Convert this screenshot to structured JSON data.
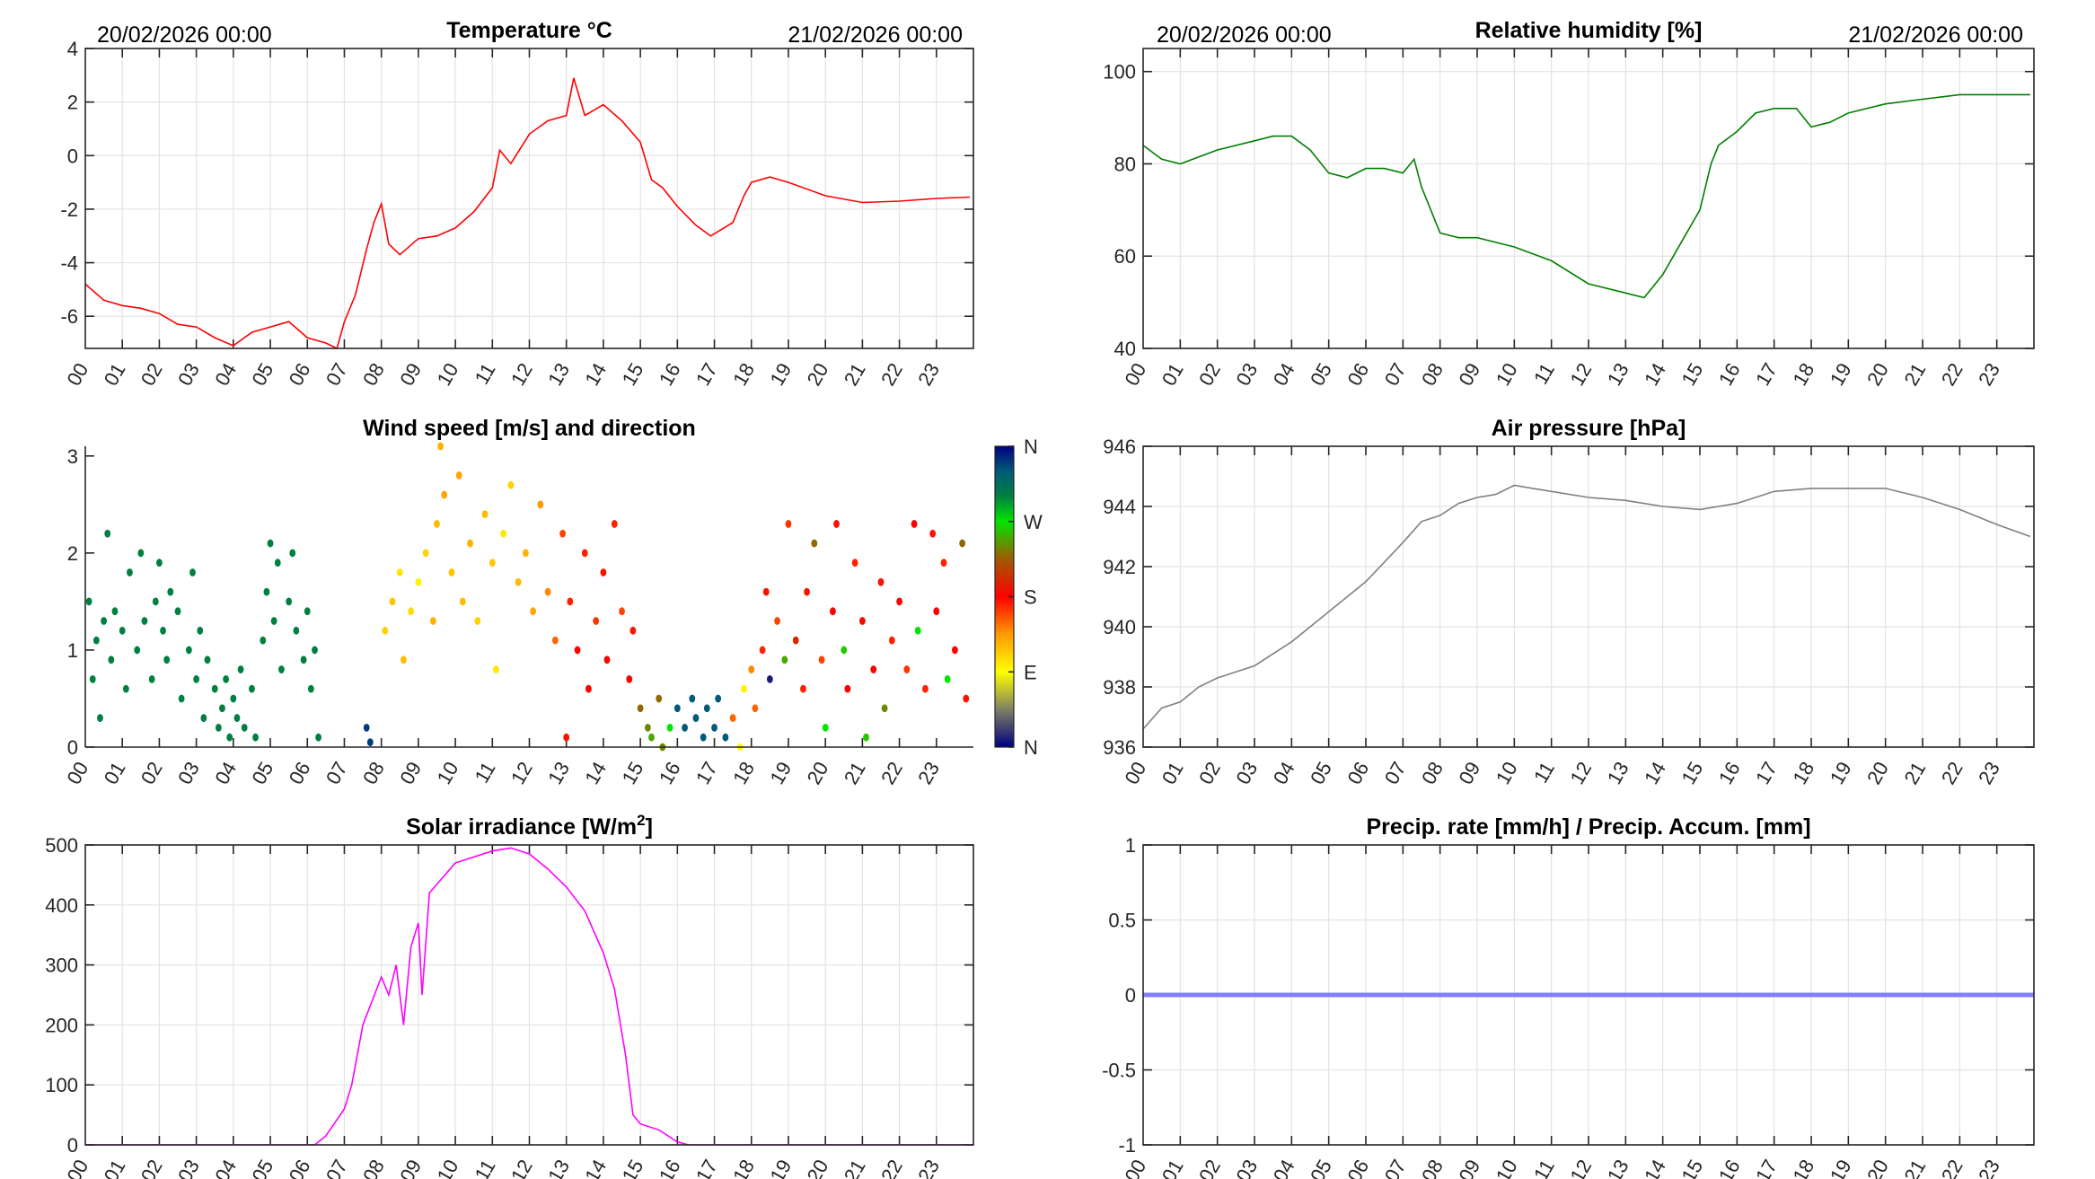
{
  "header": {
    "start_date": "20/02/2026 00:00",
    "end_date": "21/02/2026 00:00"
  },
  "x_tick_labels": [
    "00",
    "01",
    "02",
    "03",
    "04",
    "05",
    "06",
    "07",
    "08",
    "09",
    "10",
    "11",
    "12",
    "13",
    "14",
    "15",
    "16",
    "17",
    "18",
    "19",
    "20",
    "21",
    "22",
    "23"
  ],
  "chart_data": [
    {
      "id": "temperature",
      "type": "line",
      "title": "Temperature °C",
      "color": "#ff0000",
      "xlim": [
        0,
        24
      ],
      "ylim": [
        -7.2,
        4
      ],
      "yticks": [
        -6,
        -4,
        -2,
        0,
        2,
        4
      ],
      "grid": true,
      "x": [
        0,
        0.5,
        1,
        1.5,
        2,
        2.5,
        3,
        3.5,
        4,
        4.5,
        5,
        5.5,
        6,
        6.5,
        6.8,
        7,
        7.3,
        7.6,
        7.8,
        8,
        8.2,
        8.5,
        9,
        9.5,
        10,
        10.5,
        11,
        11.2,
        11.5,
        12,
        12.5,
        13,
        13.2,
        13.5,
        14,
        14.5,
        15,
        15.3,
        15.6,
        16,
        16.5,
        16.9,
        17.5,
        17.8,
        18,
        18.5,
        19,
        20,
        21,
        22,
        23,
        23.9
      ],
      "y": [
        -4.8,
        -5.4,
        -5.6,
        -5.7,
        -5.9,
        -6.3,
        -6.4,
        -6.8,
        -7.1,
        -6.6,
        -6.4,
        -6.2,
        -6.8,
        -7.0,
        -7.2,
        -6.2,
        -5.2,
        -3.5,
        -2.5,
        -1.8,
        -3.3,
        -3.7,
        -3.1,
        -3.0,
        -2.7,
        -2.1,
        -1.2,
        0.2,
        -0.3,
        0.8,
        1.3,
        1.5,
        2.9,
        1.5,
        1.9,
        1.3,
        0.5,
        -0.9,
        -1.2,
        -1.9,
        -2.6,
        -3.0,
        -2.5,
        -1.5,
        -1.0,
        -0.8,
        -1.0,
        -1.5,
        -1.75,
        -1.7,
        -1.6,
        -1.55
      ]
    },
    {
      "id": "humidity",
      "type": "line",
      "title": "Relative humidity [%]",
      "color": "#007f00",
      "xlim": [
        0,
        24
      ],
      "ylim": [
        40,
        105
      ],
      "yticks": [
        40,
        60,
        80,
        100
      ],
      "grid": true,
      "x": [
        0,
        0.5,
        1,
        2,
        3,
        3.5,
        4,
        4.5,
        5,
        5.5,
        6,
        6.5,
        7,
        7.3,
        7.5,
        8,
        8.5,
        9,
        10,
        11,
        12,
        13,
        13.5,
        14,
        14.5,
        15,
        15.3,
        15.5,
        16,
        16.5,
        17,
        17.6,
        18,
        18.5,
        19,
        20,
        21,
        22,
        23,
        23.9
      ],
      "y": [
        84,
        81,
        80,
        83,
        85,
        86,
        86,
        83,
        78,
        77,
        79,
        79,
        78,
        81,
        75,
        65,
        64,
        64,
        62,
        59,
        54,
        52,
        51,
        56,
        63,
        70,
        80,
        84,
        87,
        91,
        92,
        92,
        88,
        89,
        91,
        93,
        94,
        95,
        95,
        95
      ]
    },
    {
      "id": "wind",
      "type": "scatter",
      "title": "Wind speed [m/s] and direction",
      "xlim": [
        0,
        24
      ],
      "ylim": [
        0,
        3.1
      ],
      "yticks": [
        0,
        1,
        2,
        3
      ],
      "grid": false,
      "colorbar": {
        "labels": [
          "N",
          "W",
          "S",
          "E",
          "N"
        ],
        "range_deg": [
          0,
          360
        ]
      },
      "points": [
        [
          0.1,
          1.5,
          300
        ],
        [
          0.2,
          0.7,
          300
        ],
        [
          0.3,
          1.1,
          300
        ],
        [
          0.4,
          0.3,
          300
        ],
        [
          0.5,
          1.3,
          300
        ],
        [
          0.6,
          2.2,
          300
        ],
        [
          0.7,
          0.9,
          300
        ],
        [
          0.8,
          1.4,
          300
        ],
        [
          1.0,
          1.2,
          300
        ],
        [
          1.1,
          0.6,
          300
        ],
        [
          1.2,
          1.8,
          300
        ],
        [
          1.4,
          1.0,
          300
        ],
        [
          1.5,
          2.0,
          300
        ],
        [
          1.6,
          1.3,
          300
        ],
        [
          1.8,
          0.7,
          300
        ],
        [
          1.9,
          1.5,
          300
        ],
        [
          2.0,
          1.9,
          300
        ],
        [
          2.1,
          1.2,
          300
        ],
        [
          2.2,
          0.9,
          300
        ],
        [
          2.3,
          1.6,
          300
        ],
        [
          2.5,
          1.4,
          300
        ],
        [
          2.6,
          0.5,
          300
        ],
        [
          2.8,
          1.0,
          300
        ],
        [
          2.9,
          1.8,
          300
        ],
        [
          3.0,
          0.7,
          300
        ],
        [
          3.1,
          1.2,
          300
        ],
        [
          3.2,
          0.3,
          300
        ],
        [
          3.3,
          0.9,
          300
        ],
        [
          3.5,
          0.6,
          300
        ],
        [
          3.6,
          0.2,
          300
        ],
        [
          3.7,
          0.4,
          300
        ],
        [
          3.8,
          0.7,
          300
        ],
        [
          3.9,
          0.1,
          300
        ],
        [
          4.0,
          0.5,
          300
        ],
        [
          4.1,
          0.3,
          300
        ],
        [
          4.2,
          0.8,
          300
        ],
        [
          4.3,
          0.2,
          300
        ],
        [
          4.5,
          0.6,
          300
        ],
        [
          4.6,
          0.1,
          300
        ],
        [
          4.8,
          1.1,
          300
        ],
        [
          4.9,
          1.6,
          300
        ],
        [
          5.0,
          2.1,
          300
        ],
        [
          5.1,
          1.3,
          300
        ],
        [
          5.2,
          1.9,
          300
        ],
        [
          5.3,
          0.8,
          300
        ],
        [
          5.5,
          1.5,
          300
        ],
        [
          5.6,
          2.0,
          300
        ],
        [
          5.7,
          1.2,
          300
        ],
        [
          5.9,
          0.9,
          300
        ],
        [
          6.0,
          1.4,
          300
        ],
        [
          6.1,
          0.6,
          300
        ],
        [
          6.2,
          1.0,
          300
        ],
        [
          6.3,
          0.1,
          300
        ],
        [
          7.6,
          0.2,
          340
        ],
        [
          7.7,
          0.05,
          340
        ],
        [
          8.1,
          1.2,
          110
        ],
        [
          8.3,
          1.5,
          115
        ],
        [
          8.5,
          1.8,
          100
        ],
        [
          8.6,
          0.9,
          120
        ],
        [
          8.8,
          1.4,
          105
        ],
        [
          9.0,
          1.7,
          95
        ],
        [
          9.2,
          2.0,
          110
        ],
        [
          9.4,
          1.3,
          125
        ],
        [
          9.5,
          2.3,
          120
        ],
        [
          9.6,
          3.1,
          125
        ],
        [
          9.7,
          2.6,
          130
        ],
        [
          9.9,
          1.8,
          115
        ],
        [
          10.1,
          2.8,
          130
        ],
        [
          10.2,
          1.5,
          120
        ],
        [
          10.4,
          2.1,
          125
        ],
        [
          10.6,
          1.3,
          110
        ],
        [
          10.8,
          2.4,
          120
        ],
        [
          11.0,
          1.9,
          115
        ],
        [
          11.1,
          0.8,
          100
        ],
        [
          11.3,
          2.2,
          100
        ],
        [
          11.5,
          2.7,
          110
        ],
        [
          11.7,
          1.7,
          120
        ],
        [
          11.9,
          2.0,
          125
        ],
        [
          12.1,
          1.4,
          130
        ],
        [
          12.3,
          2.5,
          135
        ],
        [
          12.5,
          1.6,
          140
        ],
        [
          12.7,
          1.1,
          150
        ],
        [
          12.9,
          2.2,
          160
        ],
        [
          13.0,
          0.1,
          175
        ],
        [
          13.1,
          1.5,
          170
        ],
        [
          13.3,
          1.0,
          180
        ],
        [
          13.5,
          2.0,
          170
        ],
        [
          13.6,
          0.6,
          180
        ],
        [
          13.8,
          1.3,
          165
        ],
        [
          14.0,
          1.8,
          175
        ],
        [
          14.1,
          0.9,
          180
        ],
        [
          14.3,
          2.3,
          170
        ],
        [
          14.5,
          1.4,
          160
        ],
        [
          14.7,
          0.7,
          180
        ],
        [
          14.8,
          1.2,
          175
        ],
        [
          15.0,
          0.4,
          230
        ],
        [
          15.2,
          0.2,
          240
        ],
        [
          15.3,
          0.1,
          250
        ],
        [
          15.5,
          0.5,
          230
        ],
        [
          15.6,
          0.0,
          240
        ],
        [
          15.8,
          0.2,
          270
        ],
        [
          16.0,
          0.4,
          330
        ],
        [
          16.2,
          0.2,
          330
        ],
        [
          16.4,
          0.5,
          330
        ],
        [
          16.5,
          0.3,
          330
        ],
        [
          16.7,
          0.1,
          330
        ],
        [
          16.8,
          0.4,
          330
        ],
        [
          17.0,
          0.2,
          330
        ],
        [
          17.1,
          0.5,
          330
        ],
        [
          17.3,
          0.1,
          330
        ],
        [
          17.5,
          0.3,
          150
        ],
        [
          17.7,
          0.0,
          90
        ],
        [
          17.8,
          0.6,
          95
        ],
        [
          18.0,
          0.8,
          140
        ],
        [
          18.1,
          0.4,
          150
        ],
        [
          18.3,
          1.0,
          170
        ],
        [
          18.4,
          1.6,
          175
        ],
        [
          18.5,
          0.7,
          10
        ],
        [
          18.7,
          1.3,
          160
        ],
        [
          18.9,
          0.9,
          250
        ],
        [
          19.0,
          2.3,
          165
        ],
        [
          19.2,
          1.1,
          200
        ],
        [
          19.4,
          0.6,
          170
        ],
        [
          19.5,
          1.6,
          175
        ],
        [
          19.7,
          2.1,
          230
        ],
        [
          19.9,
          0.9,
          160
        ],
        [
          20.0,
          0.2,
          270
        ],
        [
          20.2,
          1.4,
          180
        ],
        [
          20.3,
          2.3,
          175
        ],
        [
          20.5,
          1.0,
          260
        ],
        [
          20.6,
          0.6,
          180
        ],
        [
          20.8,
          1.9,
          170
        ],
        [
          21.0,
          1.3,
          185
        ],
        [
          21.1,
          0.1,
          260
        ],
        [
          21.3,
          0.8,
          180
        ],
        [
          21.5,
          1.7,
          175
        ],
        [
          21.6,
          0.4,
          240
        ],
        [
          21.8,
          1.1,
          170
        ],
        [
          22.0,
          1.5,
          180
        ],
        [
          22.2,
          0.8,
          165
        ],
        [
          22.4,
          2.3,
          180
        ],
        [
          22.5,
          1.2,
          270
        ],
        [
          22.7,
          0.6,
          170
        ],
        [
          22.9,
          2.2,
          175
        ],
        [
          23.0,
          1.4,
          180
        ],
        [
          23.2,
          1.9,
          170
        ],
        [
          23.3,
          0.7,
          270
        ],
        [
          23.5,
          1.0,
          180
        ],
        [
          23.7,
          2.1,
          230
        ],
        [
          23.8,
          0.5,
          175
        ]
      ]
    },
    {
      "id": "pressure",
      "type": "line",
      "title": "Air pressure [hPa]",
      "color": "#808080",
      "xlim": [
        0,
        24
      ],
      "ylim": [
        936,
        946
      ],
      "yticks": [
        936,
        938,
        940,
        942,
        944,
        946
      ],
      "grid": true,
      "x": [
        0,
        0.5,
        1,
        1.5,
        2,
        2.5,
        3,
        4,
        5,
        6,
        7,
        7.5,
        8,
        8.5,
        9,
        9.5,
        10,
        10.5,
        11,
        12,
        13,
        14,
        15,
        15.5,
        16,
        17,
        18,
        19,
        20,
        21,
        22,
        23,
        23.9
      ],
      "y": [
        936.6,
        937.3,
        937.5,
        938.0,
        938.3,
        938.5,
        938.7,
        939.5,
        940.5,
        941.5,
        942.8,
        943.5,
        943.7,
        944.1,
        944.3,
        944.4,
        944.7,
        944.6,
        944.5,
        944.3,
        944.2,
        944.0,
        943.9,
        944.0,
        944.1,
        944.5,
        944.6,
        944.6,
        944.6,
        944.3,
        943.9,
        943.4,
        943.0
      ]
    },
    {
      "id": "solar",
      "type": "line",
      "title": "Solar irradiance [W/m",
      "title_sup": "2",
      "title_end": "]",
      "color": "#ff00ff",
      "xlim": [
        0,
        24
      ],
      "ylim": [
        0,
        500
      ],
      "yticks": [
        0,
        100,
        200,
        300,
        400,
        500
      ],
      "grid": true,
      "x": [
        0,
        6.2,
        6.5,
        7,
        7.2,
        7.5,
        8,
        8.2,
        8.4,
        8.6,
        8.8,
        9,
        9.1,
        9.3,
        10,
        11,
        11.5,
        12,
        12.5,
        13,
        13.5,
        14,
        14.3,
        14.6,
        14.8,
        15,
        15.5,
        16,
        16.3,
        24
      ],
      "y": [
        0,
        0,
        15,
        60,
        100,
        200,
        280,
        250,
        300,
        200,
        330,
        370,
        250,
        420,
        470,
        490,
        495,
        485,
        460,
        430,
        390,
        320,
        260,
        150,
        50,
        35,
        25,
        5,
        0,
        0
      ]
    },
    {
      "id": "precip",
      "type": "line",
      "title": "Precip. rate [mm/h] / Precip. Accum. [mm]",
      "color": "#8080ff",
      "xlim": [
        0,
        24
      ],
      "ylim": [
        -1,
        1
      ],
      "yticks": [
        -1,
        -0.5,
        0,
        0.5,
        1
      ],
      "grid": true,
      "x": [
        0,
        24
      ],
      "y": [
        0,
        0
      ]
    }
  ]
}
